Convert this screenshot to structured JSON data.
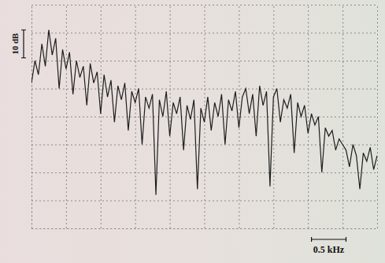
{
  "chart_data": {
    "type": "line",
    "x": [
      0,
      0.05,
      0.1,
      0.15,
      0.2,
      0.25,
      0.3,
      0.35,
      0.4,
      0.45,
      0.5,
      0.55,
      0.6,
      0.65,
      0.7,
      0.75,
      0.8,
      0.85,
      0.9,
      0.95,
      1.0,
      1.05,
      1.1,
      1.15,
      1.2,
      1.25,
      1.3,
      1.35,
      1.4,
      1.45,
      1.5,
      1.55,
      1.6,
      1.65,
      1.7,
      1.75,
      1.8,
      1.85,
      1.9,
      1.95,
      2.0,
      2.05,
      2.1,
      2.15,
      2.2,
      2.25,
      2.3,
      2.35,
      2.4,
      2.45,
      2.5,
      2.55,
      2.6,
      2.65,
      2.7,
      2.75,
      2.8,
      2.85,
      2.9,
      2.95,
      3.0,
      3.05,
      3.1,
      3.15,
      3.2,
      3.25,
      3.3,
      3.35,
      3.4,
      3.45,
      3.5,
      3.55,
      3.6,
      3.65,
      3.7,
      3.75,
      3.8,
      3.85,
      3.9,
      3.95,
      4.0,
      4.05,
      4.1,
      4.15,
      4.2,
      4.25,
      4.3,
      4.35,
      4.4,
      4.45,
      4.5,
      4.55,
      4.6,
      4.65,
      4.7,
      4.75,
      4.8,
      4.85,
      4.9,
      4.95,
      5.0
    ],
    "values": [
      52,
      60,
      55,
      66,
      58,
      71,
      62,
      68,
      50,
      64,
      57,
      63,
      48,
      60,
      54,
      58,
      44,
      59,
      52,
      56,
      41,
      55,
      47,
      53,
      38,
      51,
      46,
      52,
      35,
      49,
      45,
      50,
      30,
      47,
      43,
      48,
      12,
      46,
      40,
      49,
      33,
      45,
      41,
      47,
      28,
      44,
      39,
      46,
      14,
      43,
      38,
      47,
      35,
      45,
      40,
      48,
      30,
      46,
      42,
      49,
      36,
      47,
      50,
      41,
      48,
      33,
      51,
      44,
      49,
      15,
      47,
      50,
      38,
      46,
      43,
      48,
      27,
      45,
      40,
      44,
      34,
      41,
      37,
      40,
      20,
      36,
      33,
      35,
      28,
      32,
      30,
      28,
      22,
      30,
      26,
      14,
      27,
      24,
      29,
      21,
      26
    ],
    "color": "#1e1e1e",
    "xlim": [
      0,
      5
    ],
    "xticks": [
      0,
      0.5,
      1,
      1.5,
      2,
      2.5,
      3,
      3.5,
      4,
      4.5,
      5
    ],
    "ylim": [
      0,
      80
    ],
    "yticks": [
      0,
      10,
      20,
      30,
      40,
      50,
      60,
      70,
      80
    ],
    "grid": true,
    "tick_labels": false,
    "scale_bars": [
      {
        "axis": "y",
        "value": 10,
        "label": "10 dB"
      },
      {
        "axis": "x",
        "value": 0.5,
        "label": "0.5 kHz"
      }
    ]
  }
}
